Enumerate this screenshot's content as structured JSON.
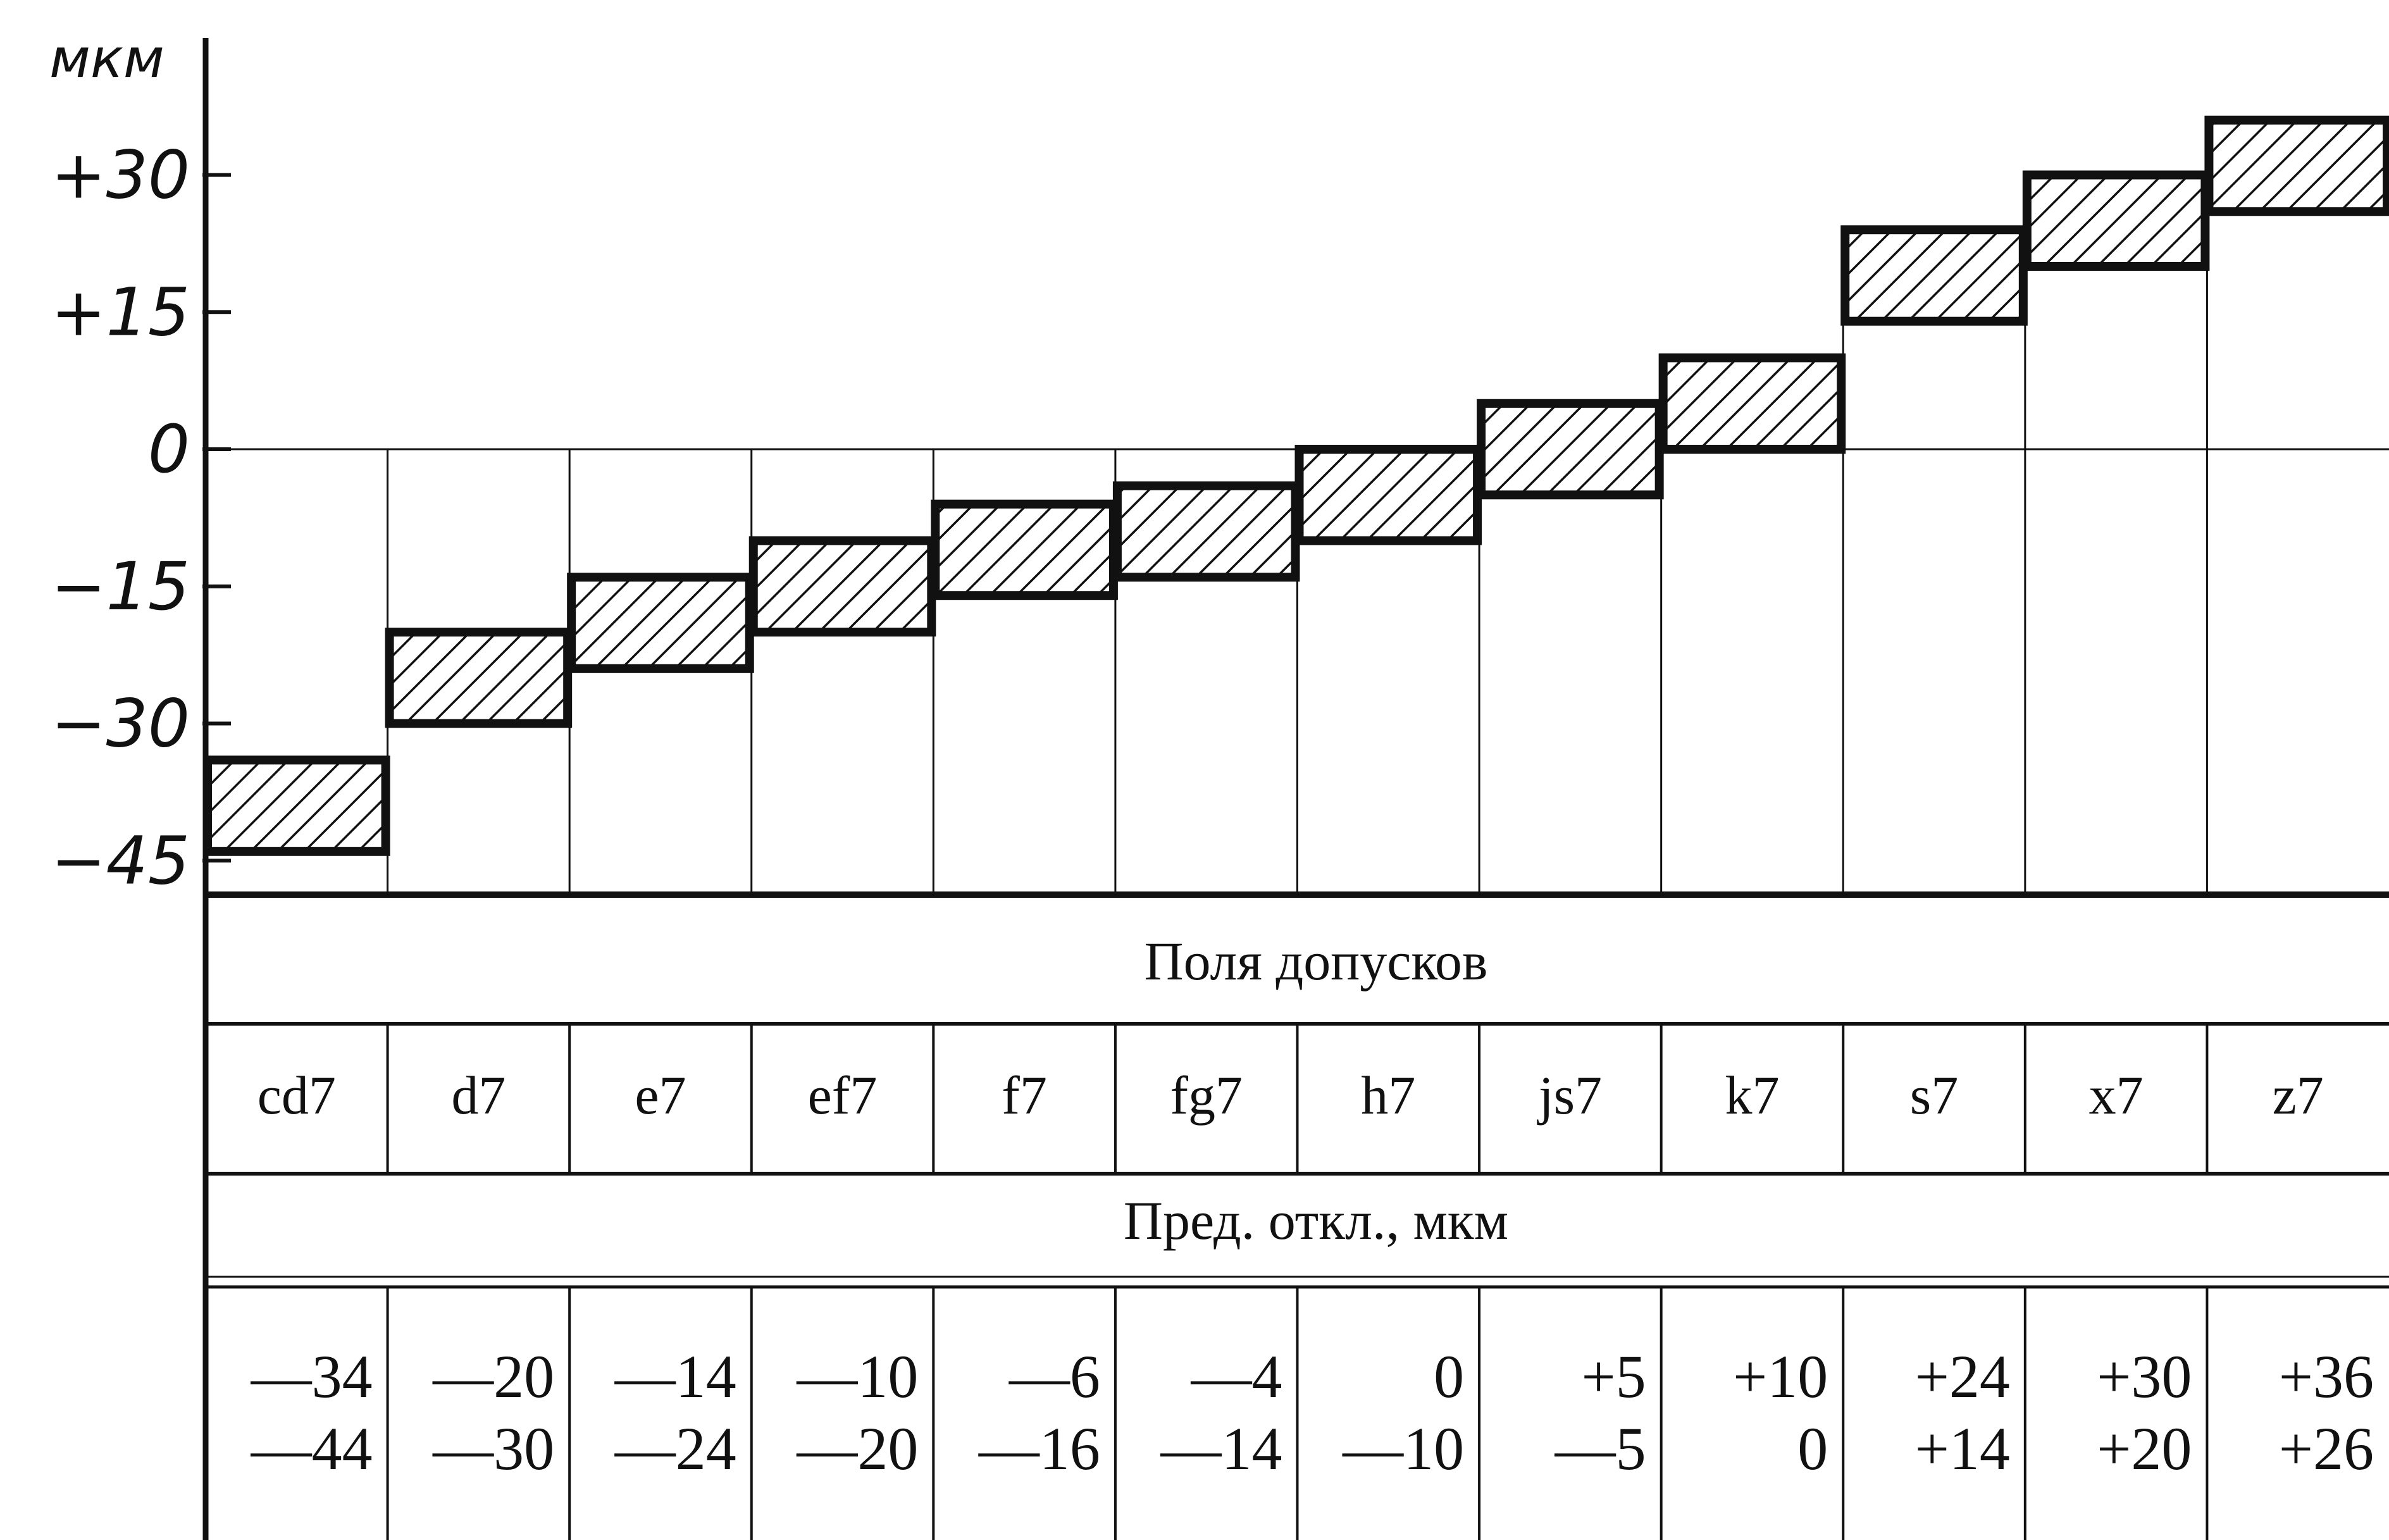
{
  "chart_data": {
    "type": "bar",
    "subtype": "tolerance-field-diagram",
    "unit_label": "мкм",
    "yticks": [
      "+30",
      "+15",
      "0",
      "−15",
      "−30",
      "−45"
    ],
    "ytick_values": [
      30,
      15,
      0,
      -15,
      -30,
      -45
    ],
    "ylim": [
      -48,
      36
    ],
    "categories": [
      "cd7",
      "d7",
      "e7",
      "ef7",
      "f7",
      "fg7",
      "h7",
      "js7",
      "k7",
      "s7",
      "x7",
      "z7"
    ],
    "upper": [
      -34,
      -20,
      -14,
      -10,
      -6,
      -4,
      0,
      5,
      10,
      24,
      30,
      36
    ],
    "lower": [
      -44,
      -30,
      -24,
      -20,
      -16,
      -14,
      -10,
      -5,
      0,
      14,
      20,
      26
    ],
    "upper_text": [
      "—34",
      "—20",
      "—14",
      "—10",
      "—6",
      "—4",
      "0",
      "+5",
      "+10",
      "+24",
      "+30",
      "+36"
    ],
    "lower_text": [
      "—44",
      "—30",
      "—24",
      "—20",
      "—16",
      "—14",
      "—10",
      "—5",
      "0",
      "+14",
      "+20",
      "+26"
    ],
    "row_title_fields": "Поля допусков",
    "row_title_deviations": "Пред. откл., мкм",
    "hatch": "diagonal",
    "grid": false,
    "legend": "none"
  }
}
